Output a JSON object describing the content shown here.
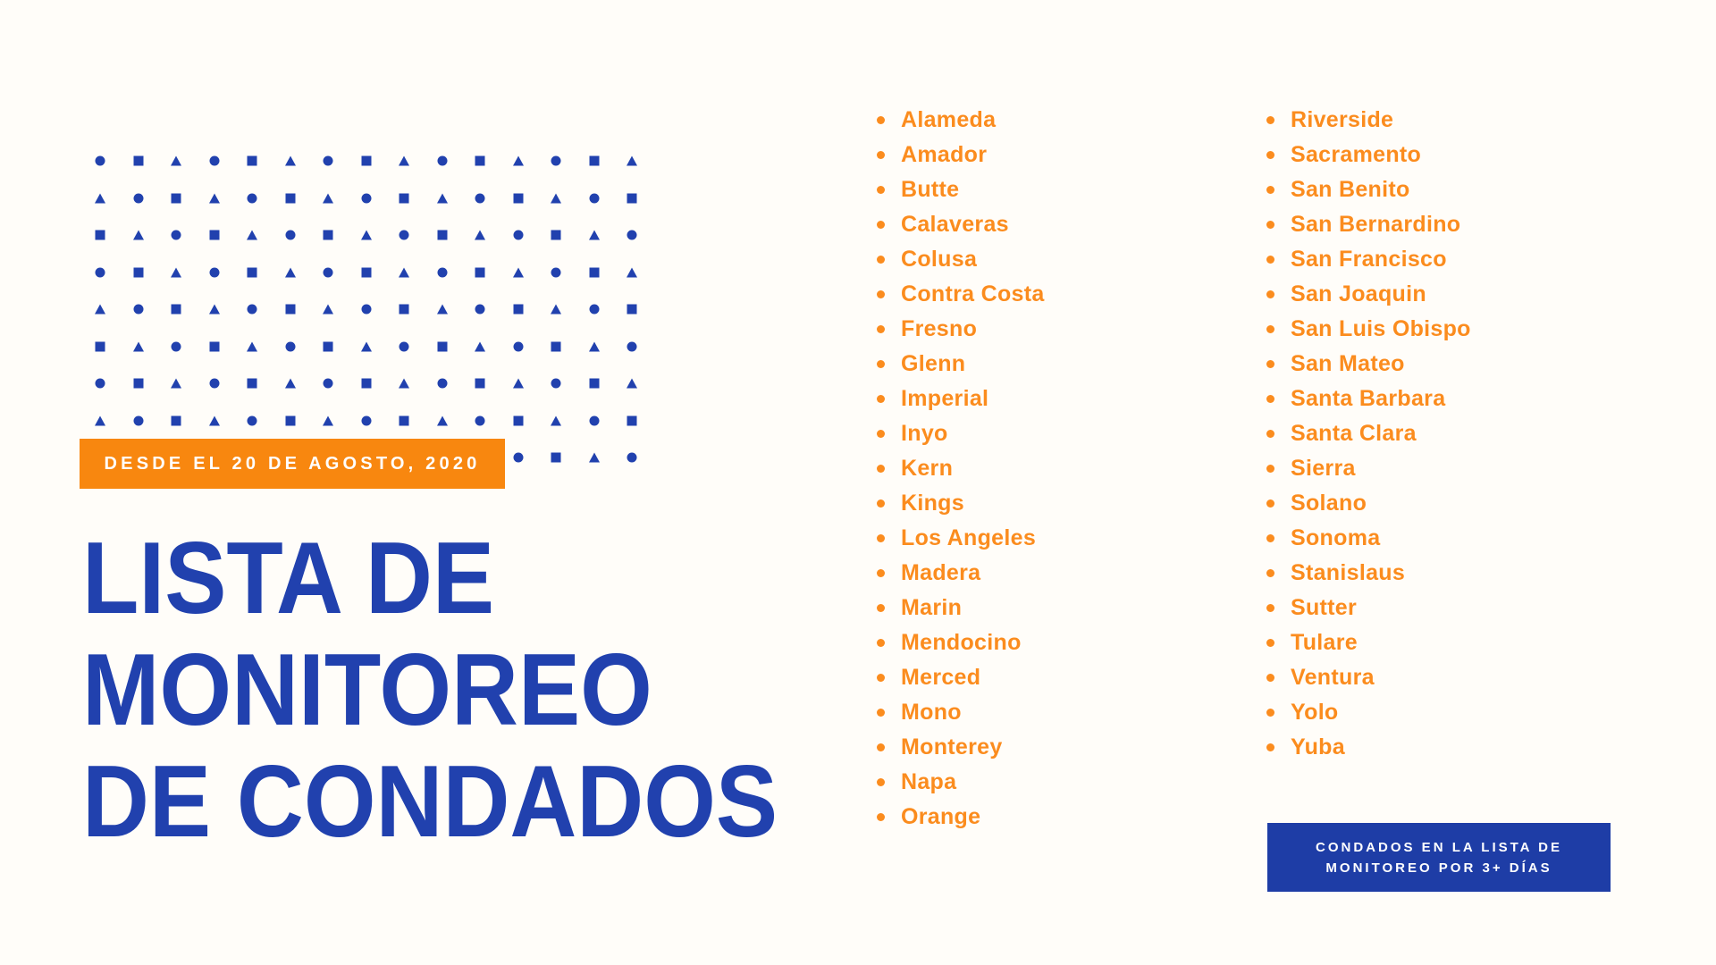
{
  "colors": {
    "background": "#FFFDF9",
    "title_blue": "#2141AE",
    "pattern_blue": "#2141AE",
    "badge_blue": "#1E3DA6",
    "orange": "#F8870F",
    "list_orange": "#FB8C1E",
    "white": "#FFFFFF"
  },
  "banner": {
    "label": "DESDE EL 20 DE AGOSTO, 2020"
  },
  "title": {
    "lines": [
      "LISTA DE",
      "MONITOREO",
      "DE CONDADOS"
    ]
  },
  "lists": {
    "column1": {
      "items": [
        "Alameda",
        "Amador",
        "Butte",
        "Calaveras",
        "Colusa",
        "Contra Costa",
        "Fresno",
        "Glenn",
        "Imperial",
        "Inyo",
        "Kern",
        "Kings",
        "Los Angeles",
        "Madera",
        "Marin",
        "Mendocino",
        "Merced",
        "Mono",
        "Monterey",
        "Napa",
        "Orange"
      ]
    },
    "column2": {
      "items": [
        "Riverside",
        "Sacramento",
        "San Benito",
        "San Bernardino",
        "San Francisco",
        "San Joaquin",
        "San Luis Obispo",
        "San Mateo",
        "Santa Barbara",
        "Santa Clara",
        "Sierra",
        "Solano",
        "Sonoma",
        "Stanislaus",
        "Sutter",
        "Tulare",
        "Ventura",
        "Yolo",
        "Yuba"
      ]
    }
  },
  "badge": {
    "lines": [
      "CONDADOS EN LA LISTA DE",
      "MONITOREO POR 3+ DÍAS"
    ]
  },
  "decor": {
    "rows": 9,
    "cols": 15,
    "shapes": [
      "circle",
      "square",
      "triangle"
    ],
    "row_shift": 2
  }
}
